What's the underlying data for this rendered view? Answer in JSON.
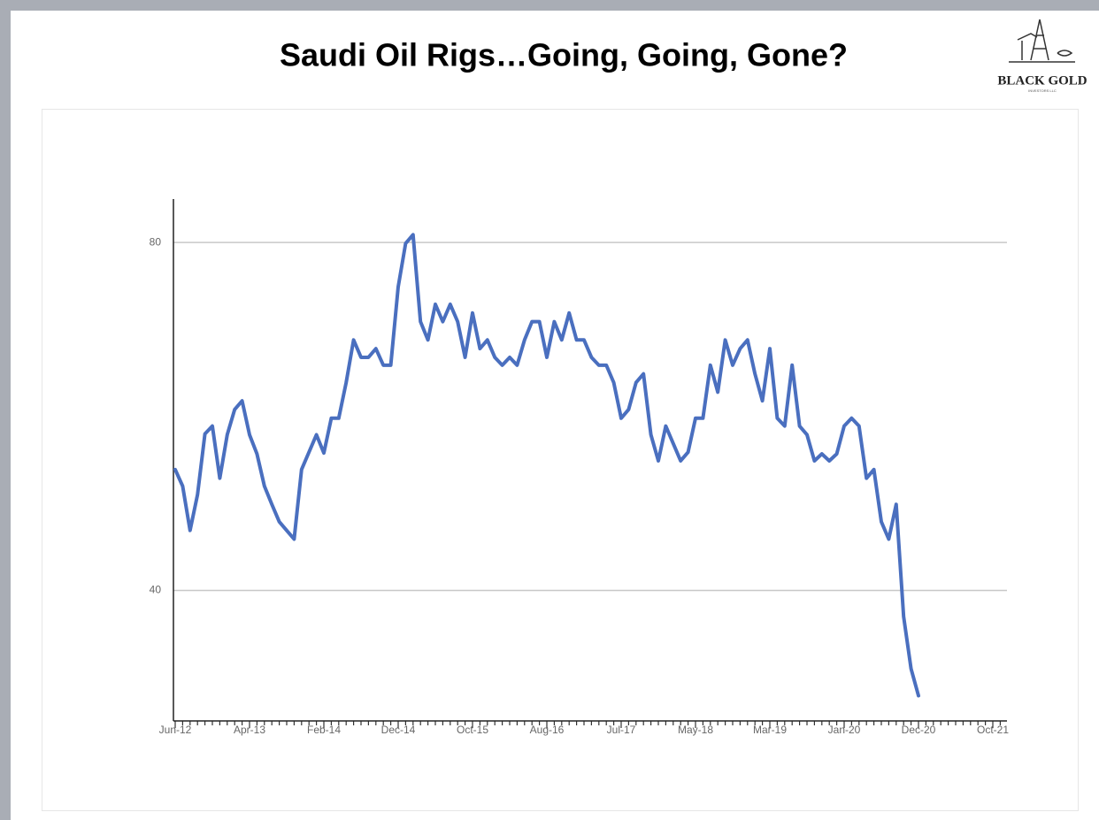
{
  "logo": {
    "name": "BLACK GOLD",
    "sub": "INVESTORS LLC"
  },
  "chart_data": {
    "type": "line",
    "title": "Saudi Oil Rigs…Going, Going, Gone?",
    "categories": [
      "Jun-12",
      null,
      null,
      null,
      null,
      null,
      null,
      null,
      null,
      null,
      "Apr-13",
      null,
      null,
      null,
      null,
      null,
      null,
      null,
      null,
      null,
      "Feb-14",
      null,
      null,
      null,
      null,
      null,
      null,
      null,
      null,
      null,
      "Dec-14",
      null,
      null,
      null,
      null,
      null,
      null,
      null,
      null,
      null,
      "Oct-15",
      null,
      null,
      null,
      null,
      null,
      null,
      null,
      null,
      null,
      "Aug-16",
      null,
      null,
      null,
      null,
      null,
      null,
      null,
      null,
      null,
      "Jul-17",
      null,
      null,
      null,
      null,
      null,
      null,
      null,
      null,
      null,
      "May-18",
      null,
      null,
      null,
      null,
      null,
      null,
      null,
      null,
      null,
      "Mar-19",
      null,
      null,
      null,
      null,
      null,
      null,
      null,
      null,
      null,
      "Jan-20",
      null,
      null,
      null,
      null,
      null,
      null,
      null,
      null,
      null,
      "Dec-20",
      null,
      null,
      null,
      null,
      null,
      null,
      null,
      null,
      null,
      "Oct-21",
      null
    ],
    "series": [
      {
        "color": "#4a6fbf",
        "values": [
          53.9,
          52.0,
          46.9,
          51.0,
          58.0,
          58.9,
          52.9,
          57.9,
          60.8,
          61.8,
          57.9,
          55.7,
          52.0,
          49.9,
          47.9,
          46.9,
          45.9,
          53.9,
          55.9,
          57.9,
          55.8,
          59.8,
          59.8,
          63.9,
          68.8,
          66.8,
          66.8,
          67.8,
          65.9,
          65.9,
          74.9,
          79.9,
          80.9,
          70.9,
          68.8,
          72.9,
          70.9,
          72.9,
          70.9,
          66.8,
          71.9,
          67.8,
          68.8,
          66.8,
          65.9,
          66.8,
          65.9,
          68.8,
          70.9,
          70.9,
          66.8,
          70.9,
          68.8,
          71.9,
          68.8,
          68.8,
          66.8,
          65.9,
          65.9,
          63.9,
          59.8,
          60.8,
          63.9,
          64.9,
          57.9,
          54.9,
          58.9,
          56.9,
          54.9,
          55.9,
          59.8,
          59.8,
          65.9,
          62.8,
          68.8,
          65.9,
          67.8,
          68.8,
          64.9,
          61.8,
          67.8,
          59.8,
          58.9,
          65.9,
          58.9,
          57.9,
          54.9,
          55.7,
          54.9,
          55.7,
          58.9,
          59.8,
          58.9,
          52.9,
          53.9,
          47.9,
          45.9,
          49.9,
          37.0,
          31.0,
          27.9,
          null,
          null,
          null,
          null,
          null,
          null,
          null,
          null,
          null,
          null,
          null
        ]
      }
    ],
    "ylim": [
      25,
      85
    ],
    "yticks": [
      40,
      80
    ],
    "grid": true
  }
}
